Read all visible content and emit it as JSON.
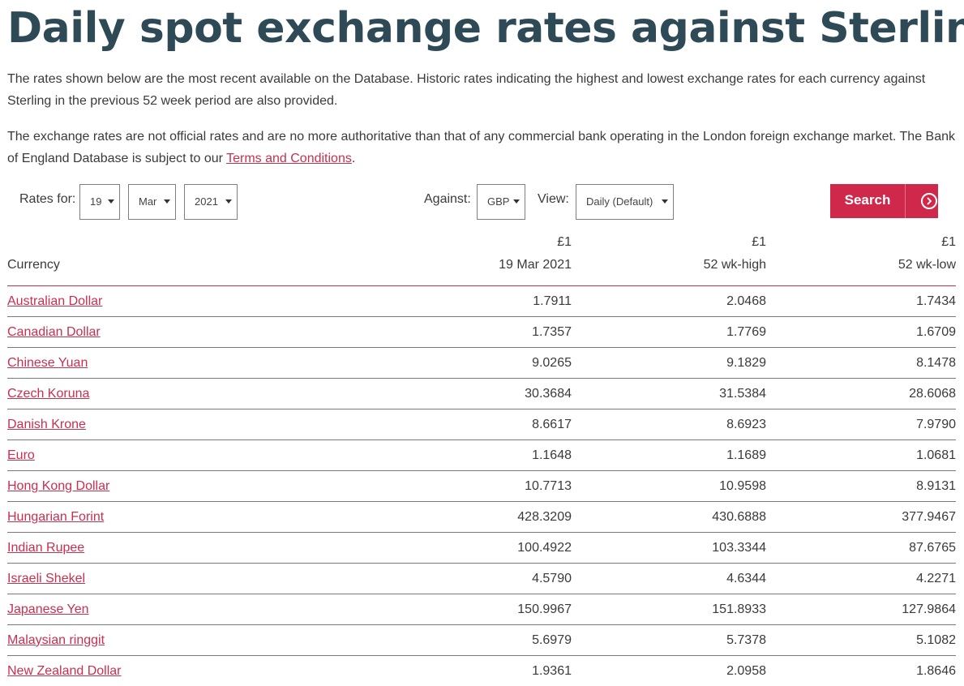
{
  "page": {
    "title": "Daily spot exchange rates against Sterling",
    "intro_1": "The rates shown below are the most recent available on the Database. Historic rates indicating the highest and lowest exchange rates for each currency against Sterling in the previous 52 week period are also provided.",
    "intro_2_before": "The exchange rates are not official rates and are no more authoritative than that of any commercial bank operating in the London foreign exchange market. The Bank of England Database is subject to our ",
    "intro_2_link": "Terms and Conditions",
    "intro_2_after": "."
  },
  "controls": {
    "rates_for_label": "Rates for:",
    "day": "19",
    "month": "Mar",
    "year": "2021",
    "against_label": "Against:",
    "against": "GBP",
    "view_label": "View:",
    "view": "Daily (Default)",
    "search_label": "Search",
    "search_icon": "chevron-right-circle-icon"
  },
  "table": {
    "headers": {
      "currency": "Currency",
      "unit": "£1",
      "col_date": "19 Mar 2021",
      "col_high": "52 wk-high",
      "col_low": "52 wk-low"
    },
    "rows": [
      {
        "currency": "Australian Dollar",
        "rate": "1.7911",
        "high": "2.0468",
        "low": "1.7434"
      },
      {
        "currency": "Canadian Dollar",
        "rate": "1.7357",
        "high": "1.7769",
        "low": "1.6709"
      },
      {
        "currency": "Chinese Yuan",
        "rate": "9.0265",
        "high": "9.1829",
        "low": "8.1478"
      },
      {
        "currency": "Czech Koruna",
        "rate": "30.3684",
        "high": "31.5384",
        "low": "28.6068"
      },
      {
        "currency": "Danish Krone",
        "rate": "8.6617",
        "high": "8.6923",
        "low": "7.9790"
      },
      {
        "currency": "Euro",
        "rate": "1.1648",
        "high": "1.1689",
        "low": "1.0681"
      },
      {
        "currency": "Hong Kong Dollar",
        "rate": "10.7713",
        "high": "10.9598",
        "low": "8.9131"
      },
      {
        "currency": "Hungarian Forint",
        "rate": "428.3209",
        "high": "430.6888",
        "low": "377.9467"
      },
      {
        "currency": "Indian Rupee",
        "rate": "100.4922",
        "high": "103.3344",
        "low": "87.6765"
      },
      {
        "currency": "Israeli Shekel",
        "rate": "4.5790",
        "high": "4.6344",
        "low": "4.2271"
      },
      {
        "currency": "Japanese Yen",
        "rate": "150.9967",
        "high": "151.8933",
        "low": "127.9864"
      },
      {
        "currency": "Malaysian ringgit",
        "rate": "5.6979",
        "high": "5.7378",
        "low": "5.1082"
      },
      {
        "currency": "New Zealand Dollar",
        "rate": "1.9361",
        "high": "2.0958",
        "low": "1.8646"
      }
    ]
  },
  "colors": {
    "title": "#2f4a57",
    "accent": "#c8304f",
    "button": "#d0284a"
  }
}
